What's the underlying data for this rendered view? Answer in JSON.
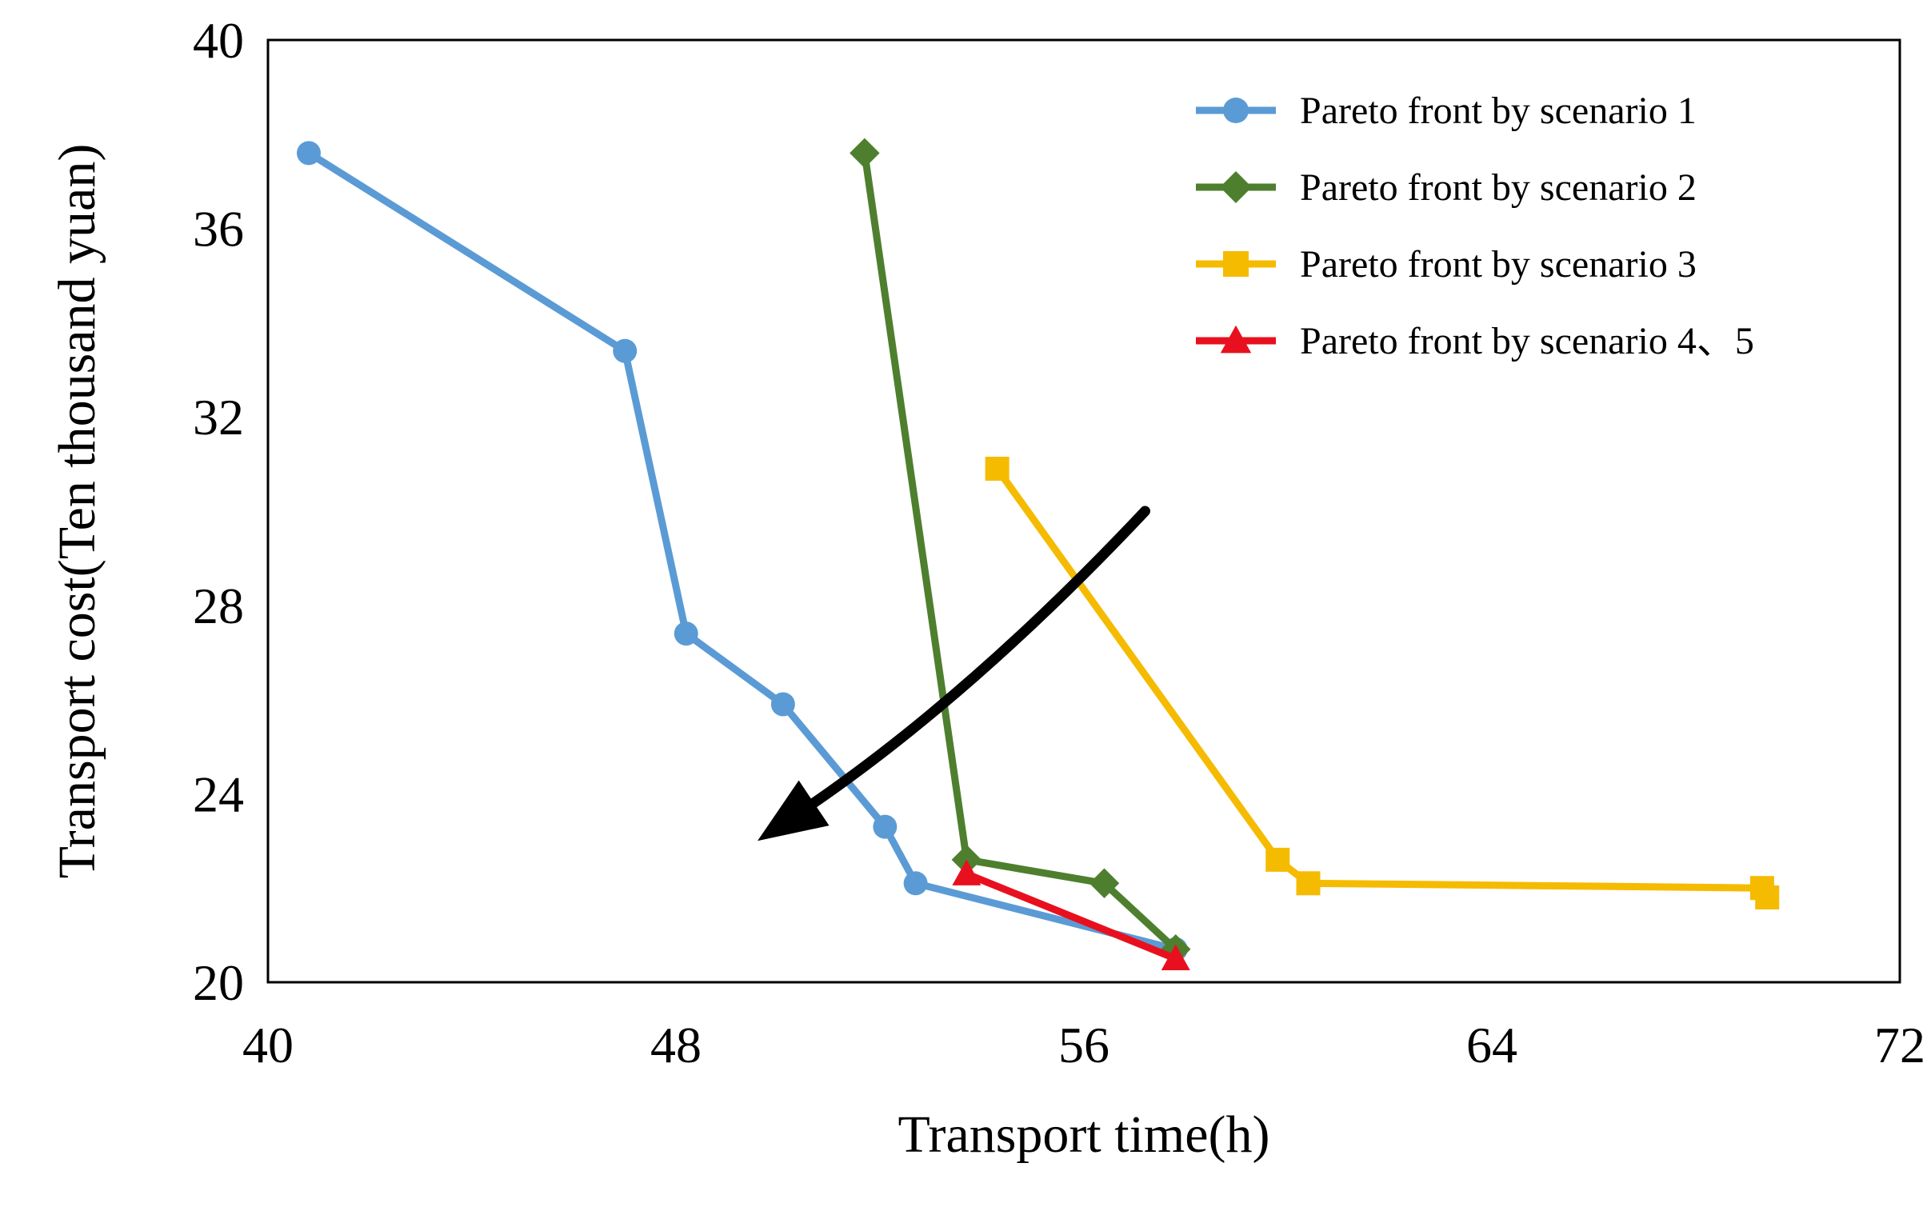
{
  "chart_data": {
    "type": "line",
    "title": "",
    "xlabel": "Transport time(h)",
    "ylabel": "Transport cost(Ten thousand yuan)",
    "xlim": [
      40,
      72
    ],
    "ylim": [
      20,
      40
    ],
    "xticks": [
      40,
      48,
      56,
      64,
      72
    ],
    "yticks": [
      20,
      24,
      28,
      32,
      36,
      40
    ],
    "grid": false,
    "legend_position": "top-right",
    "series": [
      {
        "name": "Pareto front by scenario 1",
        "color": "#5B9BD5",
        "marker": "circle",
        "x": [
          40.8,
          47.0,
          48.2,
          50.1,
          52.1,
          52.7,
          57.8
        ],
        "y": [
          37.6,
          33.4,
          27.4,
          25.9,
          23.3,
          22.1,
          20.7
        ]
      },
      {
        "name": "Pareto front by scenario 2",
        "color": "#4E7F2E",
        "marker": "diamond",
        "x": [
          51.7,
          53.7,
          56.4,
          57.8
        ],
        "y": [
          37.6,
          22.6,
          22.1,
          20.7
        ]
      },
      {
        "name": "Pareto front by scenario 3",
        "color": "#F5BB00",
        "marker": "square",
        "x": [
          54.3,
          59.8,
          60.4,
          69.3,
          69.4
        ],
        "y": [
          30.9,
          22.6,
          22.1,
          22.0,
          21.8
        ]
      },
      {
        "name": "Pareto front by scenario 4、5",
        "color": "#E8101E",
        "marker": "triangle",
        "x": [
          53.7,
          57.8
        ],
        "y": [
          22.3,
          20.5
        ]
      }
    ],
    "annotations": [
      {
        "type": "arrow",
        "color": "#000000",
        "from": {
          "x": 57.2,
          "y": 30.0
        },
        "to": {
          "x": 49.6,
          "y": 23.0
        }
      }
    ]
  }
}
